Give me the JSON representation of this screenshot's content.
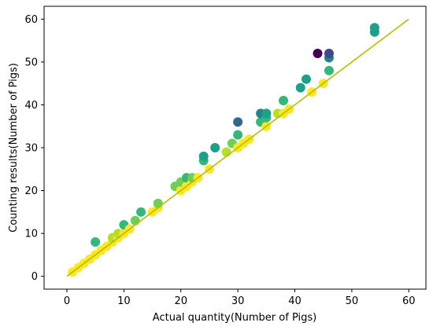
{
  "chart_data": {
    "type": "scatter",
    "title": "",
    "xlabel": "Actual quantity(Number of Pigs)",
    "ylabel": "Counting results(Number of Pigs)",
    "xlim": [
      -4,
      63
    ],
    "ylim": [
      -3,
      63
    ],
    "xticks": [
      0,
      10,
      20,
      30,
      40,
      50,
      60
    ],
    "yticks": [
      0,
      10,
      20,
      30,
      40,
      50,
      60
    ],
    "grid": false,
    "legend": "none",
    "colors": {
      "identity_line": "#b5bd00",
      "yellow": "#fde725",
      "yellow_green": "#b5de2b",
      "green": "#6ece58",
      "bright_green": "#35b779",
      "teal_green": "#1f9e89",
      "teal": "#26828e",
      "blue": "#31688e",
      "indigo": "#3e4989",
      "purple": "#440154"
    },
    "series": [
      {
        "type": "line",
        "x": [
          0,
          60
        ],
        "y": [
          0,
          60
        ],
        "color": "#b5bd00"
      },
      {
        "type": "scatter",
        "points": [
          {
            "x": 1,
            "y": 1,
            "color": "#fde725"
          },
          {
            "x": 2,
            "y": 2,
            "color": "#fde725"
          },
          {
            "x": 3,
            "y": 3,
            "color": "#fde725"
          },
          {
            "x": 4,
            "y": 4,
            "color": "#fde725"
          },
          {
            "x": 5,
            "y": 5,
            "color": "#fde725"
          },
          {
            "x": 5,
            "y": 8,
            "color": "#35b779"
          },
          {
            "x": 6,
            "y": 6,
            "color": "#fde725"
          },
          {
            "x": 7,
            "y": 7,
            "color": "#fde725"
          },
          {
            "x": 8,
            "y": 8,
            "color": "#fde725"
          },
          {
            "x": 8,
            "y": 9,
            "color": "#b5de2b"
          },
          {
            "x": 9,
            "y": 9,
            "color": "#fde725"
          },
          {
            "x": 9,
            "y": 10,
            "color": "#b5de2b"
          },
          {
            "x": 10,
            "y": 10,
            "color": "#fde725"
          },
          {
            "x": 10,
            "y": 12,
            "color": "#35b779"
          },
          {
            "x": 11,
            "y": 11,
            "color": "#fde725"
          },
          {
            "x": 12,
            "y": 13,
            "color": "#6ece58"
          },
          {
            "x": 13,
            "y": 15,
            "color": "#35b779"
          },
          {
            "x": 15,
            "y": 15,
            "color": "#fde725"
          },
          {
            "x": 16,
            "y": 16,
            "color": "#fde725"
          },
          {
            "x": 16,
            "y": 17,
            "color": "#6ece58"
          },
          {
            "x": 19,
            "y": 21,
            "color": "#6ece58"
          },
          {
            "x": 20,
            "y": 20,
            "color": "#fde725"
          },
          {
            "x": 20,
            "y": 22,
            "color": "#6ece58"
          },
          {
            "x": 21,
            "y": 21,
            "color": "#fde725"
          },
          {
            "x": 21,
            "y": 23,
            "color": "#35b779"
          },
          {
            "x": 22,
            "y": 22,
            "color": "#fde725"
          },
          {
            "x": 22,
            "y": 23,
            "color": "#6ece58"
          },
          {
            "x": 23,
            "y": 23,
            "color": "#fde725"
          },
          {
            "x": 24,
            "y": 27,
            "color": "#35b779"
          },
          {
            "x": 24,
            "y": 28,
            "color": "#1f9e89"
          },
          {
            "x": 25,
            "y": 25,
            "color": "#fde725"
          },
          {
            "x": 26,
            "y": 30,
            "color": "#1f9e89"
          },
          {
            "x": 28,
            "y": 29,
            "color": "#b5de2b"
          },
          {
            "x": 29,
            "y": 31,
            "color": "#6ece58"
          },
          {
            "x": 30,
            "y": 30,
            "color": "#fde725"
          },
          {
            "x": 30,
            "y": 33,
            "color": "#35b779"
          },
          {
            "x": 30,
            "y": 36,
            "color": "#31688e"
          },
          {
            "x": 31,
            "y": 31,
            "color": "#fde725"
          },
          {
            "x": 32,
            "y": 32,
            "color": "#fde725"
          },
          {
            "x": 34,
            "y": 36,
            "color": "#35b779"
          },
          {
            "x": 34,
            "y": 38,
            "color": "#26828e"
          },
          {
            "x": 35,
            "y": 35,
            "color": "#fde725"
          },
          {
            "x": 35,
            "y": 37,
            "color": "#35b779"
          },
          {
            "x": 35,
            "y": 38,
            "color": "#1f9e89"
          },
          {
            "x": 37,
            "y": 38,
            "color": "#b5de2b"
          },
          {
            "x": 38,
            "y": 38,
            "color": "#fde725"
          },
          {
            "x": 38,
            "y": 41,
            "color": "#35b779"
          },
          {
            "x": 39,
            "y": 39,
            "color": "#fde725"
          },
          {
            "x": 41,
            "y": 44,
            "color": "#1f9e89"
          },
          {
            "x": 42,
            "y": 46,
            "color": "#1f9e89"
          },
          {
            "x": 43,
            "y": 43,
            "color": "#fde725"
          },
          {
            "x": 44,
            "y": 52,
            "color": "#440154"
          },
          {
            "x": 45,
            "y": 45,
            "color": "#fde725"
          },
          {
            "x": 46,
            "y": 48,
            "color": "#35b779"
          },
          {
            "x": 46,
            "y": 51,
            "color": "#26828e"
          },
          {
            "x": 46,
            "y": 52,
            "color": "#3e4989"
          },
          {
            "x": 54,
            "y": 57,
            "color": "#1f9e89"
          },
          {
            "x": 54,
            "y": 58,
            "color": "#1f9e89"
          }
        ]
      }
    ]
  }
}
